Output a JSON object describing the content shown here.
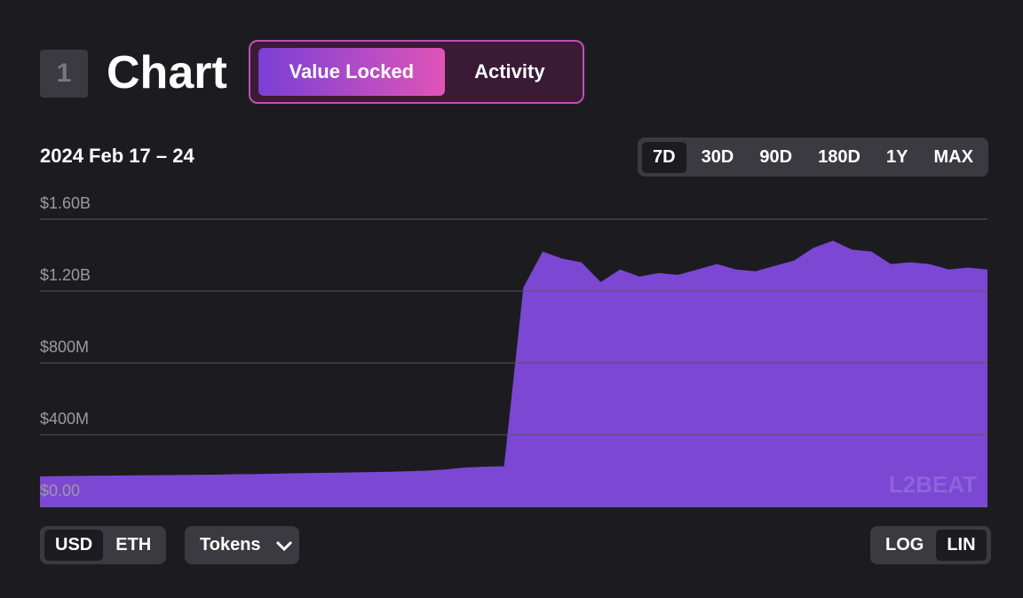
{
  "header": {
    "badge": "1",
    "title": "Chart",
    "tabs": [
      "Value Locked",
      "Activity"
    ]
  },
  "date_range": "2024 Feb 17 – 24",
  "ranges": [
    "7D",
    "30D",
    "90D",
    "180D",
    "1Y",
    "MAX"
  ],
  "currency": [
    "USD",
    "ETH"
  ],
  "tokens_button": "Tokens",
  "scale_toggle": [
    "LOG",
    "LIN"
  ],
  "watermark": "L2BEAT",
  "chart_data": {
    "type": "area",
    "color": "#7b47d3",
    "grid": true,
    "ylim": [
      0,
      1600000000
    ],
    "yticks": [
      {
        "value": 0,
        "label": "$0.00"
      },
      {
        "value": 400000000,
        "label": "$400M"
      },
      {
        "value": 800000000,
        "label": "$800M"
      },
      {
        "value": 1200000000,
        "label": "$1.20B"
      },
      {
        "value": 1600000000,
        "label": "$1.60B"
      }
    ],
    "values": [
      168000000,
      170000000,
      171000000,
      172000000,
      173000000,
      174000000,
      175000000,
      176000000,
      177000000,
      178000000,
      180000000,
      181000000,
      183000000,
      185000000,
      187000000,
      188000000,
      190000000,
      192000000,
      194000000,
      197000000,
      200000000,
      207000000,
      218000000,
      222000000,
      225000000,
      1220000000,
      1420000000,
      1380000000,
      1360000000,
      1250000000,
      1320000000,
      1280000000,
      1300000000,
      1290000000,
      1320000000,
      1350000000,
      1320000000,
      1310000000,
      1340000000,
      1370000000,
      1440000000,
      1480000000,
      1430000000,
      1420000000,
      1350000000,
      1360000000,
      1350000000,
      1320000000,
      1330000000,
      1320000000
    ]
  }
}
